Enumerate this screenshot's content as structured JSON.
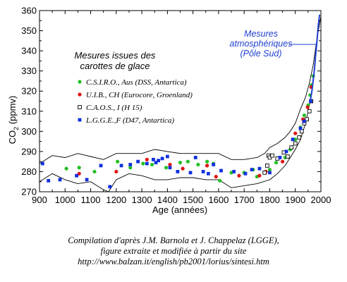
{
  "chart_data": {
    "type": "scatter",
    "xlabel": "Age (années)",
    "ylabel_main": "CO",
    "ylabel_sub": "2",
    "ylabel_unit": " (ppmv)",
    "xlim": [
      900,
      2000
    ],
    "ylim": [
      270,
      360
    ],
    "x_ticks": [
      900,
      1000,
      1100,
      1200,
      1300,
      1400,
      1500,
      1600,
      1700,
      1800,
      1900,
      2000
    ],
    "y_ticks": [
      270,
      280,
      290,
      300,
      310,
      320,
      330,
      340,
      350,
      360
    ],
    "legend_title": [
      "Mesures issues des",
      "carottes de glace"
    ],
    "annotation": [
      "Mesures",
      "atmosphériques",
      "(Pôle Sud)"
    ],
    "colors": {
      "csiro": "#22c022",
      "uib": "#e01010",
      "caos": "#000000",
      "lgge": "#1030e0",
      "atm": "#1f3fd0"
    },
    "series": [
      {
        "name": "C.S.I.R.O., Aus (DSS, Antartica)",
        "marker": "green-circle",
        "points": [
          [
            1005,
            281.5
          ],
          [
            1055,
            282
          ],
          [
            1115,
            280
          ],
          [
            1205,
            285
          ],
          [
            1255,
            282
          ],
          [
            1305,
            284
          ],
          [
            1340,
            283.5
          ],
          [
            1395,
            282
          ],
          [
            1450,
            284.5
          ],
          [
            1480,
            285
          ],
          [
            1520,
            283.5
          ],
          [
            1555,
            285
          ],
          [
            1580,
            284
          ],
          [
            1605,
            275.5
          ],
          [
            1650,
            279.5
          ],
          [
            1700,
            279.5
          ],
          [
            1735,
            281
          ],
          [
            1750,
            277.5
          ],
          [
            1780,
            279.5
          ],
          [
            1800,
            281
          ],
          [
            1825,
            284.5
          ],
          [
            1860,
            287
          ],
          [
            1880,
            291
          ],
          [
            1900,
            296
          ],
          [
            1920,
            302
          ],
          [
            1935,
            308
          ],
          [
            1950,
            313
          ],
          [
            1958,
            318
          ],
          [
            1963,
            323
          ],
          [
            1970,
            327.5
          ]
        ]
      },
      {
        "name": "U.I.B., CH (Eurocore, Groenland)",
        "marker": "red-circle",
        "points": [
          [
            1055,
            279
          ],
          [
            1200,
            280
          ],
          [
            1320,
            286
          ],
          [
            1410,
            283.5
          ],
          [
            1460,
            281.5
          ],
          [
            1555,
            283
          ],
          [
            1590,
            277.5
          ],
          [
            1680,
            278
          ],
          [
            1760,
            278
          ],
          [
            1785,
            280
          ],
          [
            1850,
            285
          ],
          [
            1900,
            299
          ],
          [
            1930,
            306
          ],
          [
            1948,
            312
          ],
          [
            1962,
            322
          ]
        ]
      },
      {
        "name": "C.A.O.S., I (H 15)",
        "marker": "open-square",
        "points": [
          [
            1780,
            279.5
          ],
          [
            1790,
            283
          ],
          [
            1795,
            288
          ],
          [
            1800,
            287
          ],
          [
            1810,
            288
          ],
          [
            1830,
            286.5
          ],
          [
            1855,
            289.5
          ],
          [
            1870,
            287.5
          ],
          [
            1885,
            292
          ],
          [
            1900,
            294
          ],
          [
            1915,
            297
          ],
          [
            1925,
            300
          ],
          [
            1935,
            304
          ],
          [
            1945,
            306
          ],
          [
            1955,
            310
          ],
          [
            1962,
            315
          ]
        ]
      },
      {
        "name": "L.G.G.E.,F (D47, Antartica)",
        "marker": "blue-square",
        "points": [
          [
            912,
            284
          ],
          [
            935,
            275.5
          ],
          [
            980,
            276
          ],
          [
            1045,
            278
          ],
          [
            1085,
            276
          ],
          [
            1140,
            283
          ],
          [
            1175,
            272.5
          ],
          [
            1220,
            283
          ],
          [
            1255,
            283.5
          ],
          [
            1285,
            285
          ],
          [
            1320,
            284
          ],
          [
            1345,
            286
          ],
          [
            1355,
            284.5
          ],
          [
            1365,
            285.5
          ],
          [
            1380,
            286.5
          ],
          [
            1400,
            287.5
          ],
          [
            1410,
            282
          ],
          [
            1440,
            280
          ],
          [
            1490,
            279.5
          ],
          [
            1510,
            287
          ],
          [
            1540,
            280
          ],
          [
            1560,
            279
          ],
          [
            1580,
            283.5
          ],
          [
            1610,
            280.5
          ],
          [
            1660,
            280
          ],
          [
            1705,
            279
          ],
          [
            1730,
            281
          ],
          [
            1760,
            281.5
          ],
          [
            1800,
            279.5
          ],
          [
            1840,
            287
          ],
          [
            1865,
            290
          ],
          [
            1890,
            296
          ],
          [
            1920,
            301.5
          ],
          [
            1935,
            305
          ],
          [
            1960,
            315
          ]
        ]
      },
      {
        "name": "Mesures atmosphériques",
        "marker": "line",
        "points": [
          [
            1958,
            315
          ],
          [
            1965,
            320
          ],
          [
            1970,
            325.5
          ],
          [
            1975,
            331
          ],
          [
            1980,
            338.5
          ],
          [
            1985,
            345.5
          ],
          [
            1990,
            353
          ],
          [
            1995,
            358
          ]
        ]
      }
    ],
    "envelope": {
      "upper": [
        [
          900,
          284
        ],
        [
          950,
          288
        ],
        [
          1000,
          287
        ],
        [
          1050,
          289
        ],
        [
          1100,
          287.5
        ],
        [
          1150,
          286
        ],
        [
          1200,
          289
        ],
        [
          1250,
          289
        ],
        [
          1300,
          289
        ],
        [
          1350,
          291
        ],
        [
          1400,
          290
        ],
        [
          1450,
          289
        ],
        [
          1500,
          289
        ],
        [
          1550,
          289
        ],
        [
          1600,
          289
        ],
        [
          1650,
          286
        ],
        [
          1700,
          286
        ],
        [
          1750,
          287
        ],
        [
          1780,
          289
        ],
        [
          1800,
          292
        ],
        [
          1830,
          294
        ],
        [
          1860,
          297
        ],
        [
          1880,
          300
        ],
        [
          1900,
          304
        ],
        [
          1920,
          311
        ],
        [
          1940,
          317
        ],
        [
          1955,
          324
        ],
        [
          1970,
          333
        ],
        [
          1980,
          342
        ],
        [
          1990,
          350
        ],
        [
          2000,
          357
        ]
      ],
      "lower": [
        [
          900,
          275
        ],
        [
          950,
          279
        ],
        [
          1000,
          276
        ],
        [
          1050,
          274
        ],
        [
          1100,
          275
        ],
        [
          1150,
          271
        ],
        [
          1170,
          270
        ],
        [
          1200,
          276
        ],
        [
          1250,
          279
        ],
        [
          1300,
          278
        ],
        [
          1350,
          276
        ],
        [
          1400,
          276
        ],
        [
          1450,
          277
        ],
        [
          1500,
          277
        ],
        [
          1550,
          276
        ],
        [
          1600,
          276
        ],
        [
          1650,
          272
        ],
        [
          1700,
          273
        ],
        [
          1750,
          274
        ],
        [
          1800,
          276
        ],
        [
          1830,
          279
        ],
        [
          1860,
          283
        ],
        [
          1880,
          287
        ],
        [
          1900,
          291
        ],
        [
          1920,
          296
        ],
        [
          1940,
          304
        ],
        [
          1950,
          310
        ],
        [
          1960,
          316
        ]
      ]
    }
  },
  "caption": {
    "line1": "Compilation d'après J.M. Barnola et J. Chappelaz (LGGE),",
    "line2": "figure extraite et modifiée à partir du site",
    "line3": "http://www.balzan.it/english/pb2001/lorius/sintesi.htm"
  }
}
